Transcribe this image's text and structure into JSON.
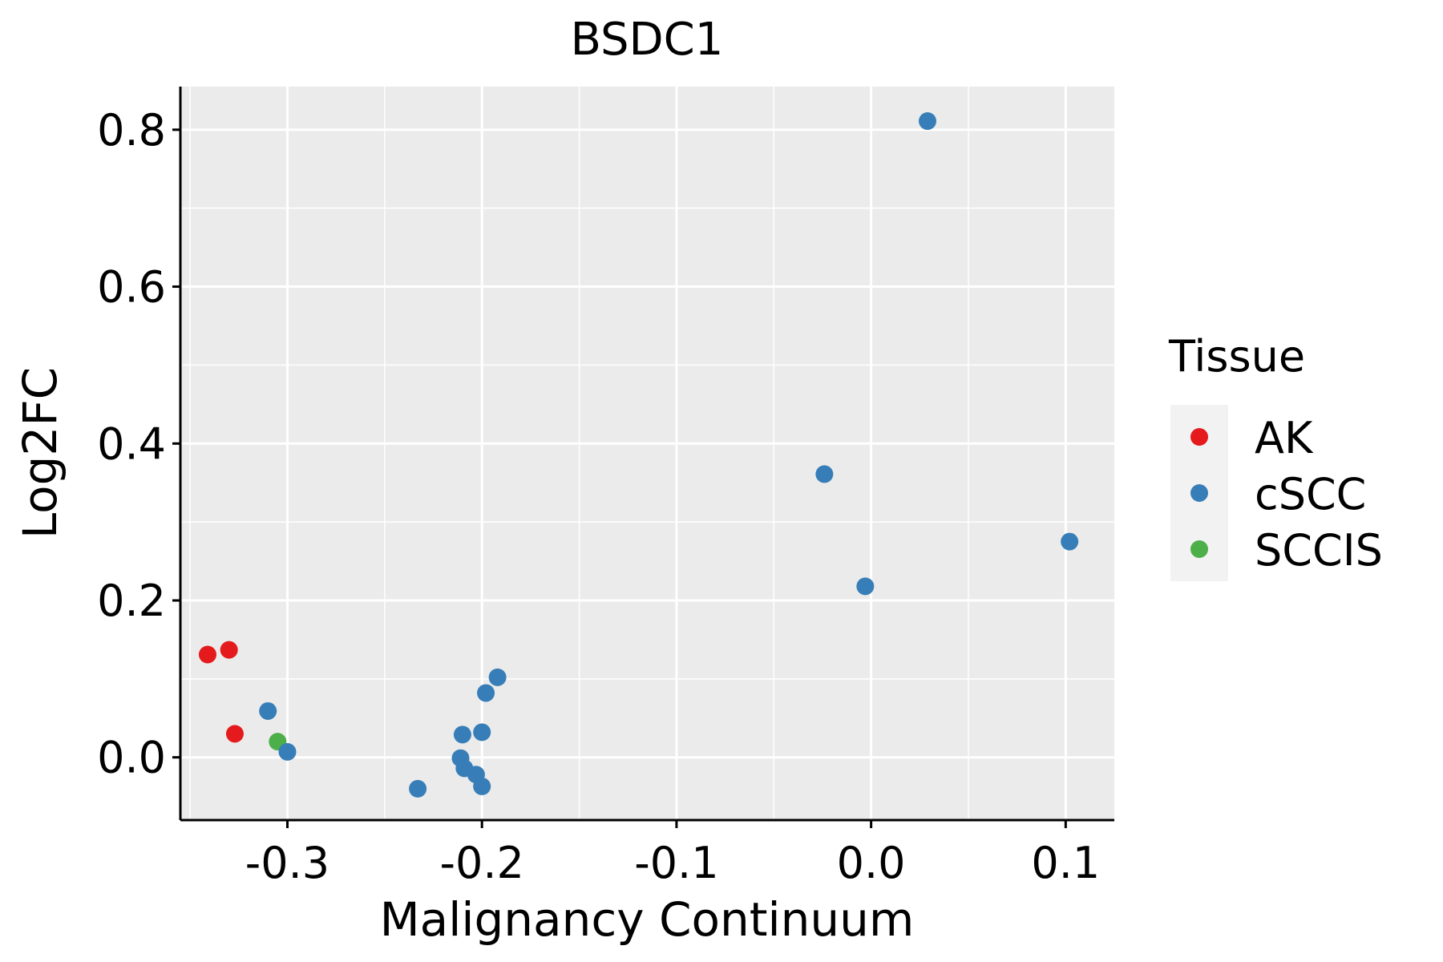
{
  "chart_data": {
    "type": "scatter",
    "title": "BSDC1",
    "xlabel": "Malignancy Continuum",
    "ylabel": "Log2FC",
    "xlim": [
      -0.355,
      0.125
    ],
    "ylim": [
      -0.08,
      0.855
    ],
    "xticks": [
      -0.3,
      -0.2,
      -0.1,
      0.0,
      0.1
    ],
    "xtick_labels": [
      "-0.3",
      "-0.2",
      "-0.1",
      "0.0",
      "0.1"
    ],
    "yticks": [
      0.0,
      0.2,
      0.4,
      0.6,
      0.8
    ],
    "ytick_labels": [
      "0.0",
      "0.2",
      "0.4",
      "0.6",
      "0.8"
    ],
    "grid": true,
    "legend": {
      "title": "Tissue",
      "position": "right",
      "entries": [
        {
          "name": "AK",
          "color": "#E41A1C"
        },
        {
          "name": "cSCC",
          "color": "#377EB8"
        },
        {
          "name": "SCCIS",
          "color": "#4DAF4A"
        }
      ]
    },
    "series": [
      {
        "name": "AK",
        "color": "#E41A1C",
        "points": [
          {
            "x": -0.341,
            "y": 0.131
          },
          {
            "x": -0.33,
            "y": 0.137
          },
          {
            "x": -0.327,
            "y": 0.03
          }
        ]
      },
      {
        "name": "SCCIS",
        "color": "#4DAF4A",
        "points": [
          {
            "x": -0.305,
            "y": 0.02
          }
        ]
      },
      {
        "name": "cSCC",
        "color": "#377EB8",
        "points": [
          {
            "x": -0.31,
            "y": 0.059
          },
          {
            "x": -0.3,
            "y": 0.007
          },
          {
            "x": -0.233,
            "y": -0.04
          },
          {
            "x": -0.21,
            "y": 0.029
          },
          {
            "x": -0.211,
            "y": -0.001
          },
          {
            "x": -0.209,
            "y": -0.014
          },
          {
            "x": -0.203,
            "y": -0.022
          },
          {
            "x": -0.2,
            "y": -0.037
          },
          {
            "x": -0.2,
            "y": 0.032
          },
          {
            "x": -0.198,
            "y": 0.082
          },
          {
            "x": -0.192,
            "y": 0.102
          },
          {
            "x": -0.024,
            "y": 0.361
          },
          {
            "x": -0.003,
            "y": 0.218
          },
          {
            "x": 0.029,
            "y": 0.811
          },
          {
            "x": 0.102,
            "y": 0.275
          }
        ]
      }
    ]
  }
}
